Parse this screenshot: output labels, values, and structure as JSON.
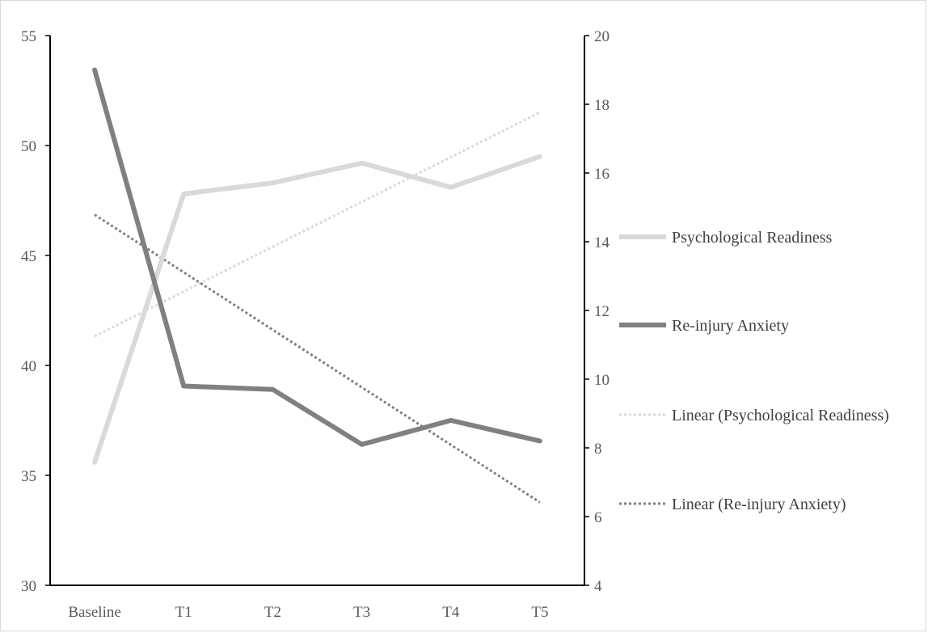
{
  "chart_data": {
    "type": "line",
    "categories": [
      "Baseline",
      "T1",
      "T2",
      "T3",
      "T4",
      "T5"
    ],
    "y_left": {
      "min": 30,
      "max": 55,
      "ticks": [
        30,
        35,
        40,
        45,
        50,
        55
      ]
    },
    "y_right": {
      "min": 4,
      "max": 20,
      "ticks": [
        4,
        6,
        8,
        10,
        12,
        14,
        16,
        18,
        20
      ]
    },
    "series": [
      {
        "name": "Psychological Readiness",
        "axis": "left",
        "color": "#d9d9d9",
        "style": "solid",
        "values": [
          35.6,
          47.8,
          48.3,
          49.2,
          48.1,
          49.5
        ]
      },
      {
        "name": "Re-injury Anxiety",
        "axis": "right",
        "color": "#808080",
        "style": "solid",
        "values": [
          19.0,
          9.8,
          9.7,
          8.1,
          8.8,
          8.2
        ]
      },
      {
        "name": "Linear (Psychological Readiness)",
        "axis": "left",
        "color": "#d9d9d9",
        "style": "dotted",
        "trend_of": "Psychological Readiness"
      },
      {
        "name": "Linear (Re-injury Anxiety)",
        "axis": "right",
        "color": "#808080",
        "style": "dotted",
        "trend_of": "Re-injury Anxiety"
      }
    ],
    "legend_position": "right",
    "grid": false
  }
}
